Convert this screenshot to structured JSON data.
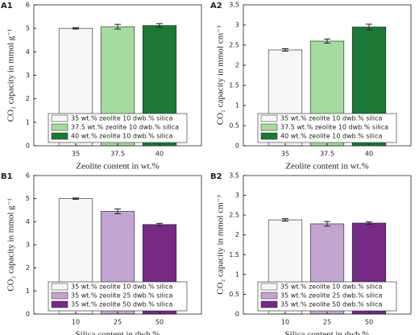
{
  "chart_data": [
    {
      "type": "bar",
      "panel": "A1",
      "ylabel": "CO₂ capacity in mmol g⁻¹",
      "xlabel": "Zeolite content in wt.%",
      "categories": [
        "35",
        "37.5",
        "40"
      ],
      "values": [
        5.0,
        5.07,
        5.12
      ],
      "errors": [
        0.03,
        0.1,
        0.08
      ],
      "colors": [
        "#f7f7f7",
        "#a6dba0",
        "#1b7837"
      ],
      "legend_labels": [
        "35 wt.% zeolite 10 dwb.% silica",
        "37.5 wt.% zeolite 10 dwb.% silica",
        "40 wt.% zeolite 10 dwb.% silica"
      ],
      "legend": "lower center",
      "ylim": [
        0,
        6
      ],
      "yticks": [
        0,
        1,
        2,
        3,
        4,
        5,
        6
      ]
    },
    {
      "type": "bar",
      "panel": "A2",
      "ylabel": "CO₂ capacity in mmol cm⁻³",
      "xlabel": "Zeolite content in wt.%",
      "categories": [
        "35",
        "37.5",
        "40"
      ],
      "values": [
        2.38,
        2.6,
        2.95
      ],
      "errors": [
        0.03,
        0.05,
        0.07
      ],
      "colors": [
        "#f7f7f7",
        "#a6dba0",
        "#1b7837"
      ],
      "legend_labels": [
        "35 wt.% zeolite 10 dwb.% silica",
        "37.5 wt.% zeolite 10 dwb.% silica",
        "40 wt.% zeolite 10 dwb.% silica"
      ],
      "legend": "lower center",
      "ylim": [
        0,
        3.5
      ],
      "yticks": [
        0,
        0.5,
        1,
        1.5,
        2,
        2.5,
        3,
        3.5
      ]
    },
    {
      "type": "bar",
      "panel": "B1",
      "ylabel": "CO₂ capacity in mmol g⁻¹",
      "xlabel": "Silica content in dwb.%",
      "categories": [
        "10",
        "25",
        "50"
      ],
      "values": [
        5.0,
        4.45,
        3.88
      ],
      "errors": [
        0.03,
        0.1,
        0.05
      ],
      "colors": [
        "#f7f7f7",
        "#c2a5cf",
        "#762a83"
      ],
      "legend_labels": [
        "35 wt.% zeolite 10 dwb.% silica",
        "35 wt.% zeolite 25 dwb.% silica",
        "35 wt.% zeolite 50 dwb.% silica"
      ],
      "legend": "lower center",
      "ylim": [
        0,
        6
      ],
      "yticks": [
        0,
        1,
        2,
        3,
        4,
        5,
        6
      ]
    },
    {
      "type": "bar",
      "panel": "B2",
      "ylabel": "CO₂ capacity in mmol cm⁻³",
      "xlabel": "Silica content in dwb.%",
      "categories": [
        "10",
        "25",
        "50"
      ],
      "values": [
        2.38,
        2.28,
        2.3
      ],
      "errors": [
        0.03,
        0.06,
        0.03
      ],
      "colors": [
        "#f7f7f7",
        "#c2a5cf",
        "#762a83"
      ],
      "legend_labels": [
        "35 wt.% zeolite 10 dwb.% silica",
        "35 wt.% zeolite 25 dwb.% silica",
        "35 wt.% zeolite 50 dwb.% silica"
      ],
      "legend": "lower center",
      "ylim": [
        0,
        3.5
      ],
      "yticks": [
        0,
        0.5,
        1,
        1.5,
        2,
        2.5,
        3,
        3.5
      ]
    }
  ]
}
